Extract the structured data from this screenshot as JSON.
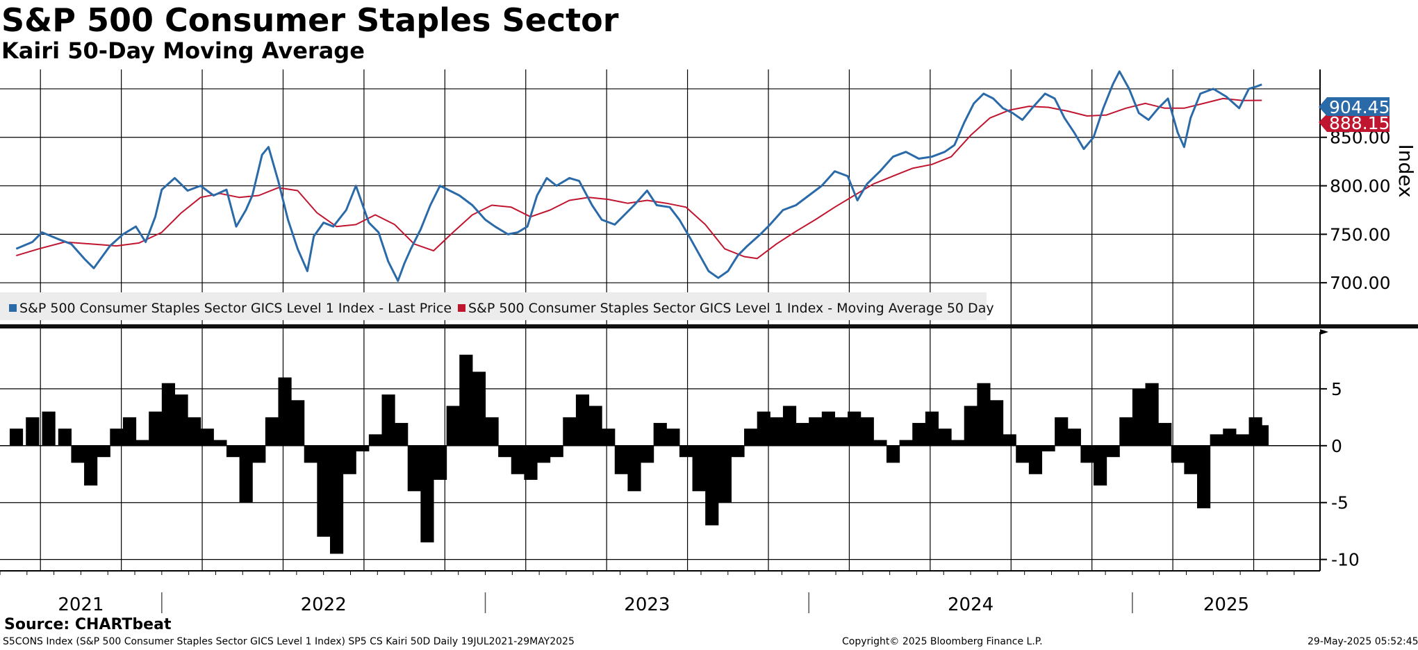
{
  "header": {
    "title": "S&P 500 Consumer Staples Sector",
    "subtitle": "Kairi 50-Day Moving Average"
  },
  "footer": {
    "source": "Source: CHARTbeat",
    "ticker_line": "S5CONS Index (S&P 500 Consumer Staples Sector GICS Level 1 Index) SP5 CS Kairi 50D  Daily 19JUL2021-29MAY2025",
    "copyright": "Copyright© 2025 Bloomberg Finance L.P.",
    "timestamp": "29-May-2025 05:52:45"
  },
  "colors": {
    "price": "#2a6aa8",
    "ma": "#c0152f",
    "kairi": "#000000",
    "grid": "#000000",
    "legend_bg": "#ececec"
  },
  "chart_data": [
    {
      "type": "line",
      "title": "S&P 500 Consumer Staples Sector",
      "ylabel": "Index",
      "ylim": [
        655,
        920
      ],
      "yticks": [
        700,
        750,
        800,
        850
      ],
      "ytick_labels": [
        "700.00",
        "750.00",
        "800.00",
        "850.00"
      ],
      "x_years": [
        "2021",
        "2022",
        "2023",
        "2024",
        "2025"
      ],
      "legend": [
        "S&P 500 Consumer Staples Sector GICS Level 1 Index - Last Price",
        "S&P 500 Consumer Staples Sector GICS Level 1 Index - Moving Average 50 Day"
      ],
      "last_price_label": "904.45",
      "ma_label": "888.15",
      "series": [
        {
          "name": "Last Price",
          "points": [
            [
              2021.55,
              735
            ],
            [
              2021.6,
              742
            ],
            [
              2021.63,
              752
            ],
            [
              2021.68,
              745
            ],
            [
              2021.72,
              740
            ],
            [
              2021.76,
              725
            ],
            [
              2021.79,
              715
            ],
            [
              2021.84,
              738
            ],
            [
              2021.88,
              750
            ],
            [
              2021.92,
              758
            ],
            [
              2021.95,
              742
            ],
            [
              2021.98,
              768
            ],
            [
              2022.0,
              796
            ],
            [
              2022.04,
              808
            ],
            [
              2022.08,
              795
            ],
            [
              2022.12,
              800
            ],
            [
              2022.16,
              790
            ],
            [
              2022.2,
              796
            ],
            [
              2022.23,
              758
            ],
            [
              2022.26,
              775
            ],
            [
              2022.28,
              790
            ],
            [
              2022.31,
              832
            ],
            [
              2022.33,
              840
            ],
            [
              2022.36,
              805
            ],
            [
              2022.39,
              765
            ],
            [
              2022.42,
              735
            ],
            [
              2022.45,
              712
            ],
            [
              2022.47,
              748
            ],
            [
              2022.5,
              762
            ],
            [
              2022.53,
              758
            ],
            [
              2022.57,
              775
            ],
            [
              2022.6,
              800
            ],
            [
              2022.64,
              762
            ],
            [
              2022.67,
              752
            ],
            [
              2022.7,
              722
            ],
            [
              2022.73,
              702
            ],
            [
              2022.75,
              720
            ],
            [
              2022.77,
              735
            ],
            [
              2022.8,
              755
            ],
            [
              2022.83,
              780
            ],
            [
              2022.86,
              800
            ],
            [
              2022.89,
              795
            ],
            [
              2022.92,
              790
            ],
            [
              2022.96,
              780
            ],
            [
              2023.0,
              765
            ],
            [
              2023.03,
              758
            ],
            [
              2023.07,
              750
            ],
            [
              2023.1,
              752
            ],
            [
              2023.13,
              758
            ],
            [
              2023.16,
              790
            ],
            [
              2023.19,
              808
            ],
            [
              2023.22,
              800
            ],
            [
              2023.26,
              808
            ],
            [
              2023.29,
              805
            ],
            [
              2023.33,
              780
            ],
            [
              2023.36,
              765
            ],
            [
              2023.4,
              760
            ],
            [
              2023.43,
              770
            ],
            [
              2023.46,
              780
            ],
            [
              2023.5,
              795
            ],
            [
              2023.53,
              780
            ],
            [
              2023.57,
              778
            ],
            [
              2023.6,
              765
            ],
            [
              2023.63,
              748
            ],
            [
              2023.66,
              730
            ],
            [
              2023.69,
              712
            ],
            [
              2023.72,
              705
            ],
            [
              2023.75,
              712
            ],
            [
              2023.78,
              728
            ],
            [
              2023.81,
              738
            ],
            [
              2023.85,
              750
            ],
            [
              2023.88,
              760
            ],
            [
              2023.92,
              775
            ],
            [
              2023.96,
              780
            ],
            [
              2024.0,
              790
            ],
            [
              2024.04,
              800
            ],
            [
              2024.08,
              815
            ],
            [
              2024.12,
              810
            ],
            [
              2024.15,
              785
            ],
            [
              2024.18,
              802
            ],
            [
              2024.22,
              815
            ],
            [
              2024.26,
              830
            ],
            [
              2024.3,
              835
            ],
            [
              2024.34,
              828
            ],
            [
              2024.38,
              830
            ],
            [
              2024.42,
              835
            ],
            [
              2024.45,
              842
            ],
            [
              2024.48,
              865
            ],
            [
              2024.51,
              885
            ],
            [
              2024.54,
              895
            ],
            [
              2024.57,
              890
            ],
            [
              2024.6,
              880
            ],
            [
              2024.63,
              875
            ],
            [
              2024.66,
              868
            ],
            [
              2024.69,
              880
            ],
            [
              2024.73,
              895
            ],
            [
              2024.76,
              890
            ],
            [
              2024.79,
              870
            ],
            [
              2024.82,
              855
            ],
            [
              2024.85,
              838
            ],
            [
              2024.88,
              850
            ],
            [
              2024.91,
              880
            ],
            [
              2024.94,
              905
            ],
            [
              2024.96,
              918
            ],
            [
              2024.99,
              900
            ],
            [
              2025.02,
              875
            ],
            [
              2025.05,
              868
            ],
            [
              2025.08,
              880
            ],
            [
              2025.11,
              890
            ],
            [
              2025.14,
              855
            ],
            [
              2025.16,
              840
            ],
            [
              2025.18,
              870
            ],
            [
              2025.21,
              895
            ],
            [
              2025.25,
              900
            ],
            [
              2025.29,
              892
            ],
            [
              2025.33,
              880
            ],
            [
              2025.36,
              900
            ],
            [
              2025.38,
              902
            ],
            [
              2025.4,
              904.45
            ]
          ]
        },
        {
          "name": "Moving Average 50 Day",
          "points": [
            [
              2021.55,
              728
            ],
            [
              2021.62,
              735
            ],
            [
              2021.7,
              742
            ],
            [
              2021.78,
              740
            ],
            [
              2021.86,
              738
            ],
            [
              2021.93,
              741
            ],
            [
              2022.0,
              752
            ],
            [
              2022.06,
              772
            ],
            [
              2022.12,
              788
            ],
            [
              2022.18,
              792
            ],
            [
              2022.24,
              788
            ],
            [
              2022.3,
              790
            ],
            [
              2022.36,
              798
            ],
            [
              2022.42,
              795
            ],
            [
              2022.48,
              772
            ],
            [
              2022.54,
              758
            ],
            [
              2022.6,
              760
            ],
            [
              2022.66,
              770
            ],
            [
              2022.72,
              760
            ],
            [
              2022.78,
              740
            ],
            [
              2022.84,
              733
            ],
            [
              2022.9,
              752
            ],
            [
              2022.96,
              770
            ],
            [
              2023.02,
              780
            ],
            [
              2023.08,
              778
            ],
            [
              2023.14,
              768
            ],
            [
              2023.2,
              775
            ],
            [
              2023.26,
              785
            ],
            [
              2023.32,
              788
            ],
            [
              2023.38,
              786
            ],
            [
              2023.44,
              782
            ],
            [
              2023.5,
              785
            ],
            [
              2023.56,
              782
            ],
            [
              2023.62,
              778
            ],
            [
              2023.68,
              760
            ],
            [
              2023.74,
              735
            ],
            [
              2023.8,
              727
            ],
            [
              2023.84,
              725
            ],
            [
              2023.9,
              740
            ],
            [
              2023.96,
              753
            ],
            [
              2024.02,
              765
            ],
            [
              2024.08,
              778
            ],
            [
              2024.14,
              790
            ],
            [
              2024.2,
              802
            ],
            [
              2024.26,
              810
            ],
            [
              2024.32,
              818
            ],
            [
              2024.38,
              822
            ],
            [
              2024.44,
              830
            ],
            [
              2024.5,
              852
            ],
            [
              2024.56,
              870
            ],
            [
              2024.62,
              878
            ],
            [
              2024.68,
              882
            ],
            [
              2024.74,
              881
            ],
            [
              2024.8,
              877
            ],
            [
              2024.86,
              872
            ],
            [
              2024.92,
              873
            ],
            [
              2024.98,
              880
            ],
            [
              2025.04,
              885
            ],
            [
              2025.1,
              880
            ],
            [
              2025.16,
              880
            ],
            [
              2025.22,
              885
            ],
            [
              2025.28,
              890
            ],
            [
              2025.34,
              888
            ],
            [
              2025.4,
              888.15
            ]
          ]
        }
      ]
    },
    {
      "type": "bar",
      "title": "Kairi 50-Day",
      "ylim": [
        -11,
        10
      ],
      "yticks": [
        5,
        0,
        -5,
        -10
      ],
      "ytick_labels": [
        "5",
        "0",
        "-5",
        "-10"
      ],
      "x": [
        2021.55,
        2021.6,
        2021.65,
        2021.7,
        2021.74,
        2021.78,
        2021.82,
        2021.86,
        2021.9,
        2021.94,
        2021.98,
        2022.02,
        2022.06,
        2022.1,
        2022.14,
        2022.18,
        2022.22,
        2022.26,
        2022.3,
        2022.34,
        2022.38,
        2022.42,
        2022.46,
        2022.5,
        2022.54,
        2022.58,
        2022.62,
        2022.66,
        2022.7,
        2022.74,
        2022.78,
        2022.82,
        2022.86,
        2022.9,
        2022.94,
        2022.98,
        2023.02,
        2023.06,
        2023.1,
        2023.14,
        2023.18,
        2023.22,
        2023.26,
        2023.3,
        2023.34,
        2023.38,
        2023.42,
        2023.46,
        2023.5,
        2023.54,
        2023.58,
        2023.62,
        2023.66,
        2023.7,
        2023.74,
        2023.78,
        2023.82,
        2023.86,
        2023.9,
        2023.94,
        2023.98,
        2024.02,
        2024.06,
        2024.1,
        2024.14,
        2024.18,
        2024.22,
        2024.26,
        2024.3,
        2024.34,
        2024.38,
        2024.42,
        2024.46,
        2024.5,
        2024.54,
        2024.58,
        2024.62,
        2024.66,
        2024.7,
        2024.74,
        2024.78,
        2024.82,
        2024.86,
        2024.9,
        2024.94,
        2024.98,
        2025.02,
        2025.06,
        2025.1,
        2025.14,
        2025.18,
        2025.22,
        2025.26,
        2025.3,
        2025.34,
        2025.38,
        2025.4
      ],
      "values": [
        1.5,
        2.5,
        3.0,
        1.5,
        -1.5,
        -3.5,
        -1.0,
        1.5,
        2.5,
        0.5,
        3.0,
        5.5,
        4.5,
        2.5,
        1.5,
        0.5,
        -1.0,
        -5.0,
        -1.5,
        2.5,
        6.0,
        4.0,
        -1.5,
        -8.0,
        -9.5,
        -2.5,
        -0.5,
        1.0,
        4.5,
        2.0,
        -4.0,
        -8.5,
        -3.0,
        3.5,
        8.0,
        6.5,
        2.5,
        -1.0,
        -2.5,
        -3.0,
        -1.5,
        -1.0,
        2.5,
        4.5,
        3.5,
        1.5,
        -2.5,
        -4.0,
        -1.5,
        2.0,
        1.5,
        -1.0,
        -4.0,
        -7.0,
        -5.0,
        -1.0,
        1.5,
        3.0,
        2.5,
        3.5,
        2.0,
        2.5,
        3.0,
        2.5,
        3.0,
        2.5,
        0.5,
        -1.5,
        0.5,
        2.0,
        3.0,
        1.5,
        0.5,
        3.5,
        5.5,
        4.0,
        1.0,
        -1.5,
        -2.5,
        -0.5,
        2.5,
        1.5,
        -1.5,
        -3.5,
        -1.0,
        2.5,
        5.0,
        5.5,
        2.0,
        -1.5,
        -2.5,
        -5.5,
        1.0,
        1.5,
        1.0,
        2.5,
        1.8
      ]
    }
  ]
}
